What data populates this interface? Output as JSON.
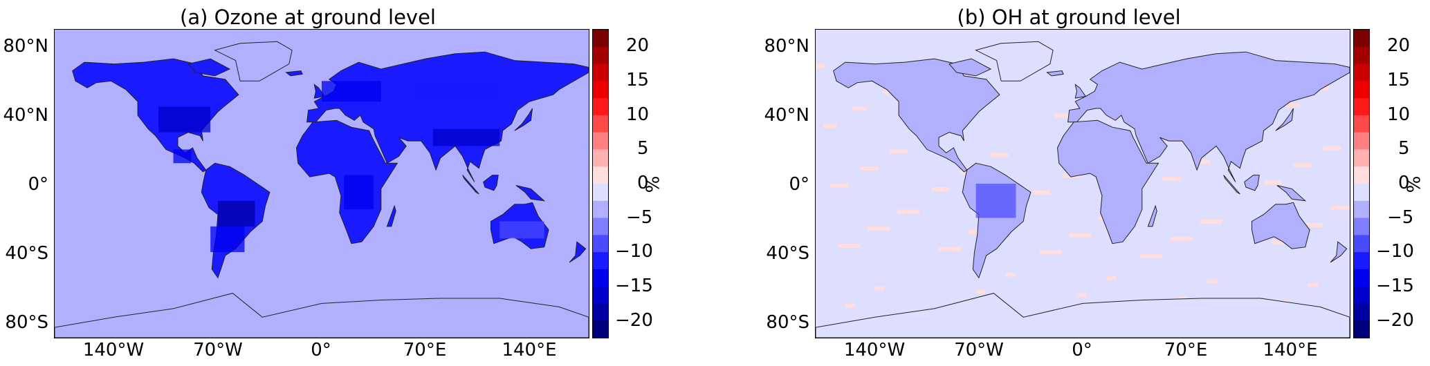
{
  "panels": [
    {
      "id": "a",
      "title": "(a) Ozone at ground level",
      "land_level": -12,
      "ocean_level": -2.5
    },
    {
      "id": "b",
      "title": "(b) OH at ground level",
      "land_level": -3,
      "ocean_level": -1
    }
  ],
  "axes": {
    "lat_labels": [
      "80°N",
      "40°N",
      "0°",
      "40°S",
      "80°S"
    ],
    "lat_values": [
      80,
      40,
      0,
      -40,
      -80
    ],
    "lon_labels": [
      "140°W",
      "70°W",
      "0°",
      "70°E",
      "140°E"
    ],
    "lon_values": [
      -140,
      -70,
      0,
      70,
      140
    ],
    "lon_range": [
      -180,
      180
    ],
    "lat_range": [
      -90,
      90
    ]
  },
  "colorbar": {
    "unit": "%",
    "tick_labels": [
      "20",
      "15",
      "10",
      "5",
      "0",
      "−5",
      "−10",
      "−15",
      "−20"
    ],
    "tick_values": [
      20,
      15,
      10,
      5,
      0,
      -5,
      -10,
      -15,
      -20
    ],
    "range": [
      -22.5,
      22.5
    ],
    "step": 2.5,
    "colors_high_to_low": [
      "#7a0000",
      "#a50000",
      "#cc0000",
      "#ee0000",
      "#ff1a1a",
      "#ff4a4a",
      "#ff8080",
      "#ffb0b0",
      "#ffdede",
      "#dedeff",
      "#b0b0ff",
      "#8080ff",
      "#4a4aff",
      "#1a1aff",
      "#0000ee",
      "#0000cc",
      "#0000a5",
      "#00007a"
    ]
  }
}
